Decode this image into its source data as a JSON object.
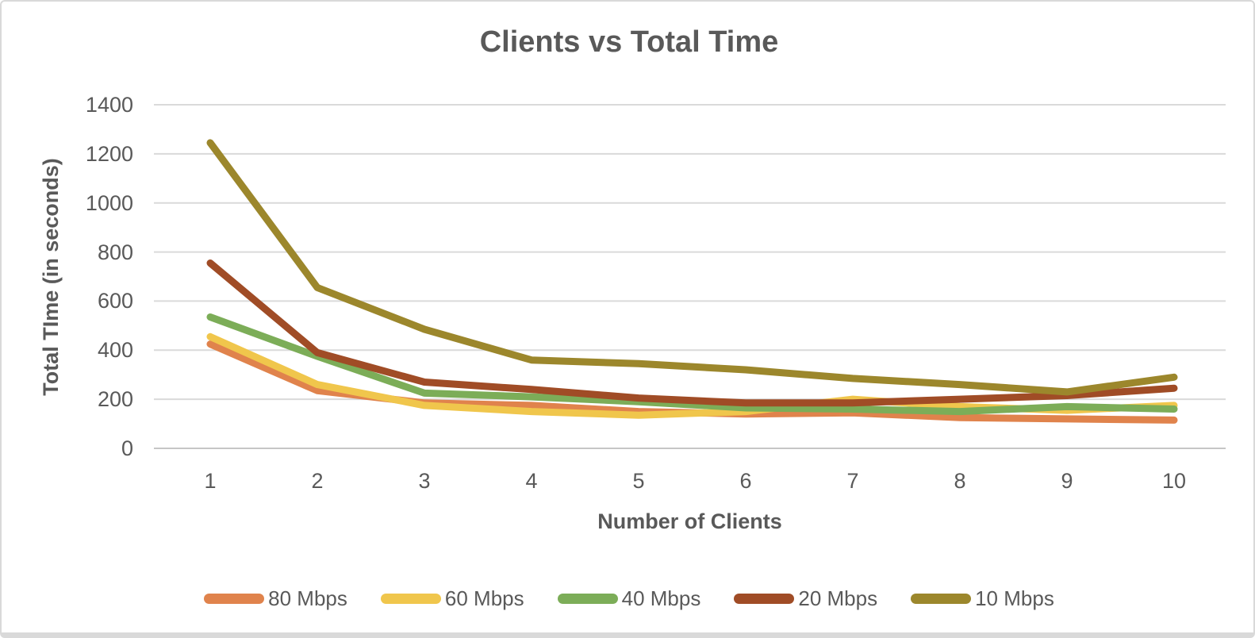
{
  "chart_data": {
    "type": "line",
    "title": "Clients vs Total Time",
    "xlabel": "Number of Clients",
    "ylabel": "Total TIme (in seconds)",
    "x": [
      1,
      2,
      3,
      4,
      5,
      6,
      7,
      8,
      9,
      10
    ],
    "x_tick_labels": [
      "1",
      "2",
      "3",
      "4",
      "5",
      "6",
      "7",
      "8",
      "9",
      "10"
    ],
    "y_ticks": [
      0,
      200,
      400,
      600,
      800,
      1000,
      1200,
      1400
    ],
    "ylim": [
      0,
      1400
    ],
    "grid": true,
    "legend_position": "bottom",
    "series": [
      {
        "name": "80 Mbps",
        "color": "#E0834C",
        "values": [
          425,
          235,
          185,
          175,
          150,
          140,
          145,
          125,
          120,
          115
        ]
      },
      {
        "name": "60 Mbps",
        "color": "#F0C64C",
        "values": [
          455,
          260,
          175,
          150,
          135,
          150,
          200,
          170,
          155,
          175
        ]
      },
      {
        "name": "40 Mbps",
        "color": "#7CAD58",
        "values": [
          535,
          375,
          225,
          210,
          190,
          165,
          160,
          150,
          170,
          160
        ]
      },
      {
        "name": "20 Mbps",
        "color": "#A04C26",
        "values": [
          755,
          390,
          270,
          240,
          205,
          185,
          185,
          200,
          215,
          245
        ]
      },
      {
        "name": "10 Mbps",
        "color": "#9C872C",
        "values": [
          1245,
          655,
          485,
          360,
          345,
          320,
          285,
          260,
          230,
          290
        ]
      }
    ]
  },
  "colors": {
    "text": "#595959",
    "gridline": "#DADADA",
    "axis_line": "#C6C6C6",
    "frame": "#D9D9D9",
    "background": "#FFFFFF"
  }
}
